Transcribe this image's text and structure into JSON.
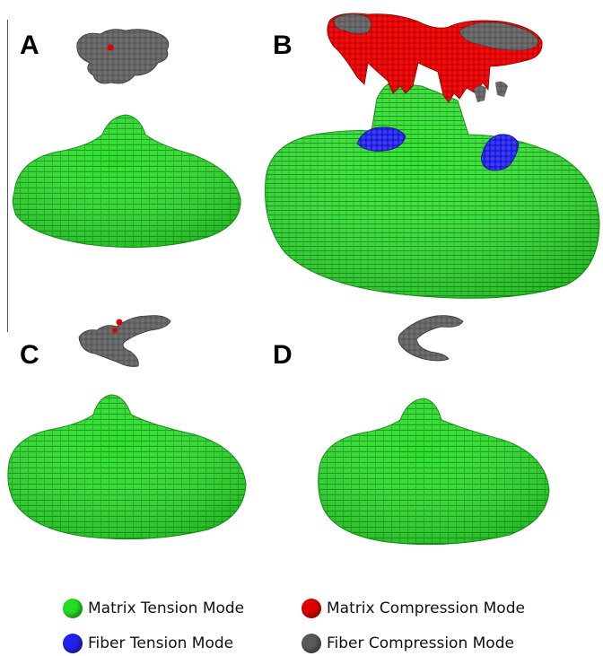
{
  "panels": [
    {
      "label": "A"
    },
    {
      "label": "B"
    },
    {
      "label": "C"
    },
    {
      "label": "D"
    }
  ],
  "legend": [
    {
      "label": "Matrix Tension Mode",
      "color": "#22dd22"
    },
    {
      "label": "Matrix Compression Mode",
      "color": "#e00000"
    },
    {
      "label": "Fiber Tension Mode",
      "color": "#2222ee"
    },
    {
      "label": "Fiber Compression Mode",
      "color": "#5a5a5a"
    }
  ],
  "colors": {
    "matrix_tension": "#22dd22",
    "matrix_compression": "#e00000",
    "fiber_tension": "#2222ee",
    "fiber_compression": "#5a5a5a"
  }
}
